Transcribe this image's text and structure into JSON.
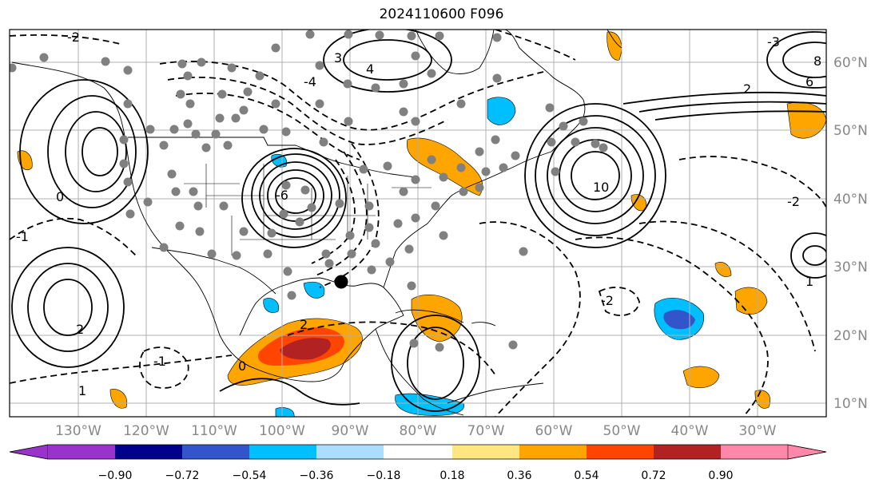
{
  "title": "2024110600 F096",
  "map": {
    "lat_labels": [
      "60°N",
      "50°N",
      "40°N",
      "30°N",
      "20°N",
      "10°N"
    ],
    "lon_labels": [
      "130°W",
      "120°W",
      "110°W",
      "100°W",
      "90°W",
      "80°W",
      "70°W",
      "60°W",
      "50°W",
      "40°W",
      "30°W"
    ],
    "contour_labels": [
      "-2",
      "-1",
      "0",
      "1",
      "2",
      "3",
      "4",
      "6",
      "8",
      "10",
      "-6",
      "-3",
      "-4",
      "2",
      "-2",
      "1",
      "-1",
      "0",
      "-2",
      "2"
    ]
  },
  "colorbar": {
    "ticks": [
      "−0.90",
      "−0.72",
      "−0.54",
      "−0.36",
      "−0.18",
      "0.18",
      "0.36",
      "0.54",
      "0.72",
      "0.90"
    ],
    "colors": [
      "#9933cc",
      "#00008b",
      "#3355cc",
      "#00bfff",
      "#aaddff",
      "#ffffff",
      "#ffe680",
      "#ffa500",
      "#ff4500",
      "#b22222",
      "#ff88aa"
    ]
  },
  "palette": {
    "orange": "#ffa500",
    "red": "#ff4500",
    "darkred": "#b22222",
    "cyan": "#00bfff",
    "blue": "#3355cc",
    "gray_dot": "#808080"
  }
}
